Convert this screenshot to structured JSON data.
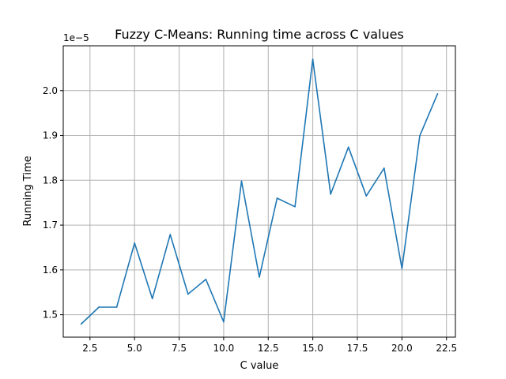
{
  "chart_data": {
    "type": "line",
    "title": "Fuzzy C-Means: Running time across C values",
    "xlabel": "C value",
    "ylabel": "Running Time",
    "y_offset_label": "1e−5",
    "xlim": [
      1.0,
      23.0
    ],
    "ylim": [
      1.45,
      2.1
    ],
    "x_ticks": [
      2.5,
      5.0,
      7.5,
      10.0,
      12.5,
      15.0,
      17.5,
      20.0,
      22.5
    ],
    "x_tick_labels": [
      "2.5",
      "5.0",
      "7.5",
      "10.0",
      "12.5",
      "15.0",
      "17.5",
      "20.0",
      "22.5"
    ],
    "y_ticks": [
      1.5,
      1.6,
      1.7,
      1.8,
      1.9,
      2.0
    ],
    "y_tick_labels": [
      "1.5",
      "1.6",
      "1.7",
      "1.8",
      "1.9",
      "2.0"
    ],
    "grid": true,
    "line_color": "#1f77b4",
    "series": [
      {
        "x": [
          2,
          3,
          4,
          5,
          6,
          7,
          8,
          9,
          10,
          11,
          12,
          13,
          14,
          15,
          16,
          17,
          18,
          19,
          20,
          21,
          22
        ],
        "values": [
          1.479,
          1.517,
          1.517,
          1.66,
          1.536,
          1.679,
          1.546,
          1.579,
          1.484,
          1.798,
          1.584,
          1.76,
          1.741,
          2.07,
          1.769,
          1.874,
          1.765,
          1.827,
          1.603,
          1.899,
          1.993
        ]
      }
    ]
  }
}
